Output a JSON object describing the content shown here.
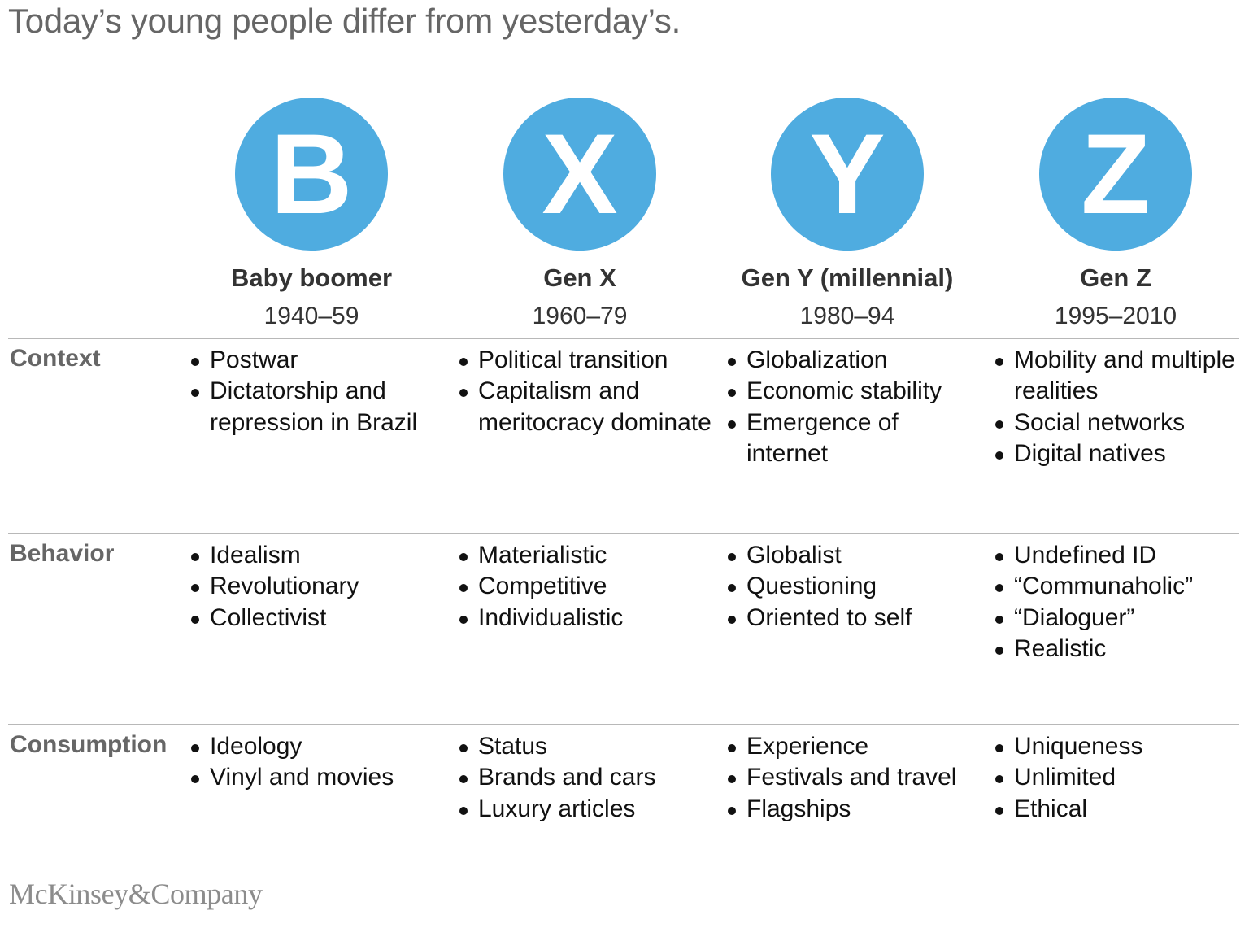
{
  "title": "Today’s young people differ from yesterday’s.",
  "accent_color": "#4FACE0",
  "generations": [
    {
      "letter": "B",
      "name": "Baby boomer",
      "years": "1940–59"
    },
    {
      "letter": "X",
      "name": "Gen X",
      "years": "1960–79"
    },
    {
      "letter": "Y",
      "name": "Gen Y (millennial)",
      "years": "1980–94"
    },
    {
      "letter": "Z",
      "name": "Gen Z",
      "years": "1995–2010"
    }
  ],
  "rows": [
    {
      "label": "Context",
      "cells": [
        [
          "Postwar",
          "Dictatorship and repression in Brazil"
        ],
        [
          "Political transition",
          "Capitalism and meritocracy dominate"
        ],
        [
          "Globalization",
          "Economic stability",
          "Emergence of internet"
        ],
        [
          "Mobility and multiple realities",
          "Social networks",
          "Digital natives"
        ]
      ]
    },
    {
      "label": "Behavior",
      "cells": [
        [
          "Idealism",
          "Revolutionary",
          "Collectivist"
        ],
        [
          "Materialistic",
          "Competitive",
          "Individualistic"
        ],
        [
          "Globalist",
          "Questioning",
          "Oriented to self"
        ],
        [
          "Undefined ID",
          "“Communaholic”",
          "“Dialoguer”",
          "Realistic"
        ]
      ]
    },
    {
      "label": "Consumption",
      "cells": [
        [
          "Ideology",
          "Vinyl and movies"
        ],
        [
          "Status",
          "Brands and cars",
          "Luxury articles"
        ],
        [
          "Experience",
          "Festivals and travel",
          "Flagships"
        ],
        [
          "Uniqueness",
          "Unlimited",
          "Ethical"
        ]
      ]
    }
  ],
  "logo": "McKinsey&Company"
}
